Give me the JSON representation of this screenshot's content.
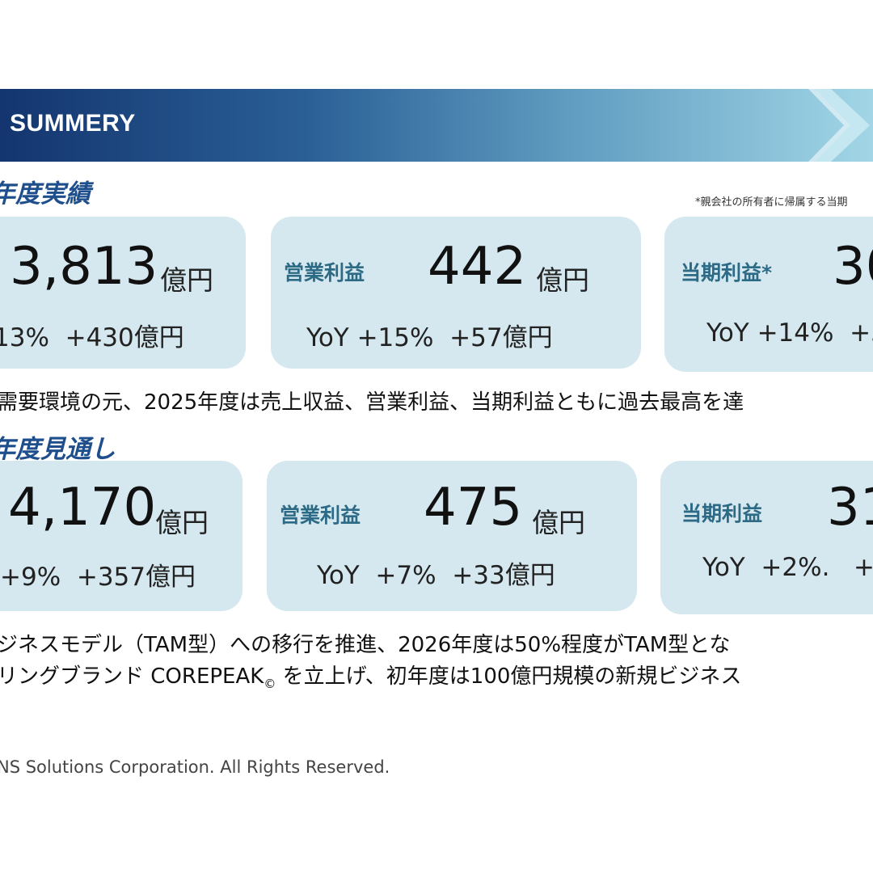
{
  "header": {
    "title": "SUMMERY"
  },
  "actual": {
    "section_title": "年度実績",
    "note": "*親会社の所有者に帰属する当期",
    "cards": [
      {
        "label": "",
        "value": "3,813",
        "unit": "億円",
        "yoy": "13%  +430億円"
      },
      {
        "label": "営業利益",
        "value": "442",
        "unit": "億円",
        "yoy": "YoY +15%  +57億円"
      },
      {
        "label": "当期利益*",
        "value": "30",
        "unit": "",
        "yoy": "YoY +14%  +3"
      }
    ],
    "statement": "需要環境の元、2025年度は売上収益、営業利益、当期利益ともに過去最高を達"
  },
  "forecast": {
    "section_title": "年度見通し",
    "cards": [
      {
        "label": "",
        "value": "4,170",
        "unit": "億円",
        "yoy": "+9%  +357億円"
      },
      {
        "label": "営業利益",
        "value": "475",
        "unit": "億円",
        "yoy": "YoY  +7%  +33億円"
      },
      {
        "label": "当期利益",
        "value": "31",
        "unit": "",
        "yoy": "YoY  +2%.   +"
      }
    ],
    "statement_line1": "ジネスモデル（TAM型）への移行を推進、2026年度は50%程度がTAM型とな",
    "statement_line2_a": "リングブランド COREPEAK",
    "statement_line2_mark": "©",
    "statement_line2_b": " を立上げ、初年度は100億円規模の新規ビジネス"
  },
  "footer": {
    "copyright": "NS Solutions Corporation. All Rights Reserved."
  },
  "colors": {
    "banner_start": "#14356f",
    "banner_end": "#a2d6e6",
    "card_bg": "#d5e8ef",
    "label": "#2c6a86",
    "section_title": "#1e4f8c"
  }
}
